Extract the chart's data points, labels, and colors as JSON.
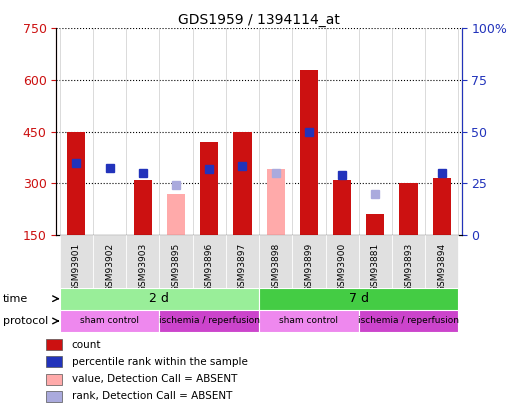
{
  "title": "GDS1959 / 1394114_at",
  "samples": [
    "GSM93901",
    "GSM93902",
    "GSM93903",
    "GSM93895",
    "GSM93896",
    "GSM93897",
    "GSM93898",
    "GSM93899",
    "GSM93900",
    "GSM93881",
    "GSM93893",
    "GSM93894"
  ],
  "count_values": [
    450,
    0,
    310,
    0,
    420,
    450,
    0,
    630,
    310,
    210,
    300,
    315
  ],
  "count_absent": [
    0,
    0,
    0,
    270,
    0,
    0,
    340,
    0,
    0,
    0,
    0,
    0
  ],
  "rank_values": [
    360,
    345,
    330,
    0,
    340,
    350,
    0,
    450,
    325,
    0,
    0,
    330
  ],
  "rank_absent": [
    0,
    0,
    0,
    295,
    0,
    0,
    330,
    0,
    0,
    270,
    0,
    0
  ],
  "ylim_left": [
    150,
    750
  ],
  "ylim_right": [
    0,
    100
  ],
  "yticks_left": [
    150,
    300,
    450,
    600,
    750
  ],
  "yticks_right": [
    0,
    25,
    50,
    75,
    100
  ],
  "count_color": "#cc1111",
  "rank_color": "#2233bb",
  "count_absent_color": "#ffaaaa",
  "rank_absent_color": "#aaaadd",
  "time_groups": [
    {
      "label": "2 d",
      "start": 0,
      "end": 6,
      "color": "#99ee99"
    },
    {
      "label": "7 d",
      "start": 6,
      "end": 12,
      "color": "#44cc44"
    }
  ],
  "protocol_groups": [
    {
      "label": "sham control",
      "start": 0,
      "end": 3,
      "color": "#ee88ee"
    },
    {
      "label": "ischemia / reperfusion",
      "start": 3,
      "end": 6,
      "color": "#cc44cc"
    },
    {
      "label": "sham control",
      "start": 6,
      "end": 9,
      "color": "#ee88ee"
    },
    {
      "label": "ischemia / reperfusion",
      "start": 9,
      "end": 12,
      "color": "#cc44cc"
    }
  ],
  "legend_items": [
    {
      "label": "count",
      "color": "#cc1111"
    },
    {
      "label": "percentile rank within the sample",
      "color": "#2233bb"
    },
    {
      "label": "value, Detection Call = ABSENT",
      "color": "#ffaaaa"
    },
    {
      "label": "rank, Detection Call = ABSENT",
      "color": "#aaaadd"
    }
  ],
  "bar_width": 0.55,
  "rank_marker_size": 6,
  "tick_label_color": "#cc1111",
  "right_axis_color": "#2233bb",
  "grid_color": "#000000",
  "background_color": "#ffffff"
}
